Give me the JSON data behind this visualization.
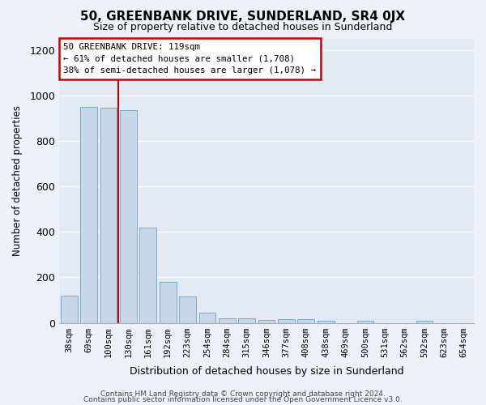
{
  "title": "50, GREENBANK DRIVE, SUNDERLAND, SR4 0JX",
  "subtitle": "Size of property relative to detached houses in Sunderland",
  "xlabel": "Distribution of detached houses by size in Sunderland",
  "ylabel": "Number of detached properties",
  "bar_color": "#c8d8eb",
  "bar_edge_color": "#7aaac8",
  "vline_color": "#cc0000",
  "vline_x": 2.5,
  "categories": [
    "38sqm",
    "69sqm",
    "100sqm",
    "130sqm",
    "161sqm",
    "192sqm",
    "223sqm",
    "254sqm",
    "284sqm",
    "315sqm",
    "346sqm",
    "377sqm",
    "408sqm",
    "438sqm",
    "469sqm",
    "500sqm",
    "531sqm",
    "562sqm",
    "592sqm",
    "623sqm",
    "654sqm"
  ],
  "values": [
    120,
    950,
    945,
    935,
    420,
    180,
    115,
    45,
    20,
    20,
    12,
    15,
    15,
    10,
    0,
    8,
    0,
    0,
    8,
    0,
    0
  ],
  "ylim": [
    0,
    1250
  ],
  "yticks": [
    0,
    200,
    400,
    600,
    800,
    1000,
    1200
  ],
  "annotation_text": "50 GREENBANK DRIVE: 119sqm\n← 61% of detached houses are smaller (1,708)\n38% of semi-detached houses are larger (1,078) →",
  "footer_line1": "Contains HM Land Registry data © Crown copyright and database right 2024.",
  "footer_line2": "Contains public sector information licensed under the Open Government Licence v3.0.",
  "background_color": "#eef2f8",
  "grid_color": "#ffffff",
  "ax_background": "#e4eaf4"
}
